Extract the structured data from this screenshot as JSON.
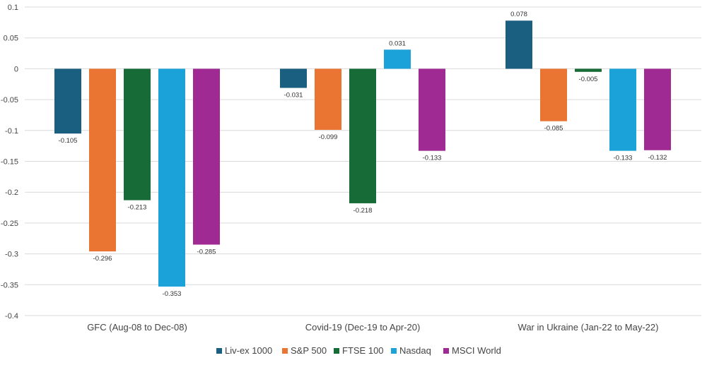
{
  "chart_data": {
    "type": "bar",
    "title": "",
    "xlabel": "",
    "ylabel": "",
    "ylim": [
      -0.4,
      0.1
    ],
    "yticks": [
      0.1,
      0.05,
      0,
      -0.05,
      -0.1,
      -0.15,
      -0.2,
      -0.25,
      -0.3,
      -0.35,
      -0.4
    ],
    "ytick_labels": [
      "0.1",
      "0.05",
      "0",
      "-0.05",
      "-0.1",
      "-0.15",
      "-0.2",
      "-0.25",
      "-0.3",
      "-0.35",
      "-0.4"
    ],
    "grid": true,
    "legend_position": "bottom-center",
    "categories": [
      "GFC (Aug-08 to Dec-08)",
      "Covid-19 (Dec-19 to Apr-20)",
      "War in Ukraine (Jan-22 to May-22)"
    ],
    "series": [
      {
        "name": "Liv-ex 1000",
        "color": "#1a5e80",
        "values": [
          -0.105,
          -0.031,
          0.078
        ],
        "labels": [
          "-0.105",
          "-0.031",
          "0.078"
        ]
      },
      {
        "name": "S&P 500",
        "color": "#ea7432",
        "values": [
          -0.296,
          -0.099,
          -0.085
        ],
        "labels": [
          "-0.296",
          "-0.099",
          "-0.085"
        ]
      },
      {
        "name": "FTSE 100",
        "color": "#176b37",
        "values": [
          -0.213,
          -0.218,
          -0.005
        ],
        "labels": [
          "-0.213",
          "-0.218",
          "-0.005"
        ]
      },
      {
        "name": "Nasdaq",
        "color": "#1ba2d9",
        "values": [
          -0.353,
          0.031,
          -0.133
        ],
        "labels": [
          "-0.353",
          "0.031",
          "-0.133"
        ]
      },
      {
        "name": "MSCI World",
        "color": "#a02a94",
        "values": [
          -0.285,
          -0.133,
          -0.132
        ],
        "labels": [
          "-0.285",
          "-0.133",
          "-0.132"
        ]
      }
    ]
  }
}
